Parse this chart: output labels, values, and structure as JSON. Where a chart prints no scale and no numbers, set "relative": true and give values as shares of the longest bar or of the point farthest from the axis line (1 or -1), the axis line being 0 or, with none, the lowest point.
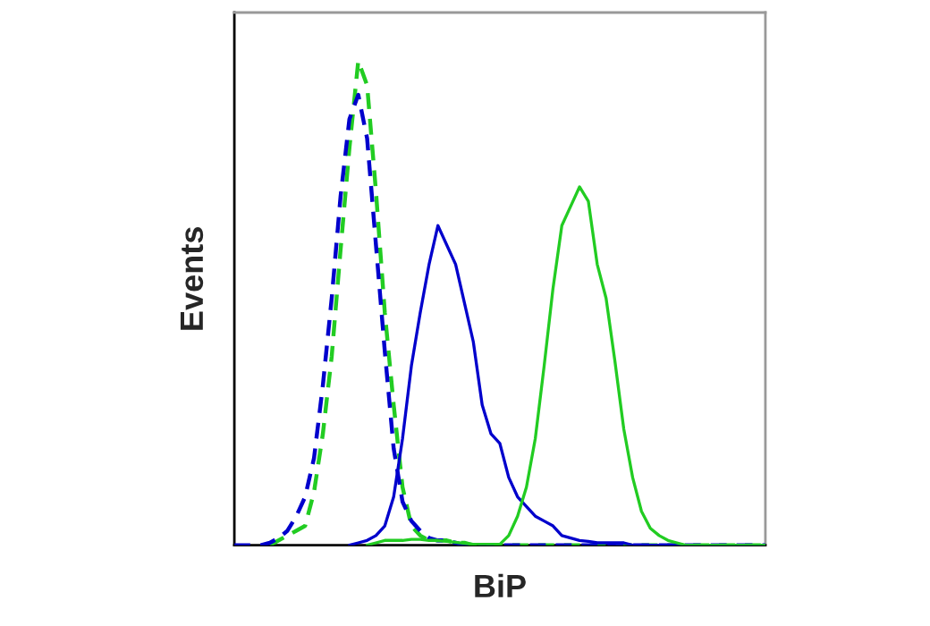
{
  "chart_data": {
    "type": "line",
    "relative": true,
    "xlabel": "BiP",
    "ylabel": "Events",
    "grid": false,
    "categories": [
      null,
      null,
      null,
      null,
      null,
      null,
      null,
      null,
      null,
      null,
      null,
      null,
      null,
      null,
      null,
      null,
      null,
      null,
      null,
      null,
      null,
      null,
      null,
      null,
      null,
      null,
      null,
      null,
      null,
      null,
      null,
      null,
      null,
      null,
      null,
      null,
      null,
      null,
      null,
      null,
      null,
      null,
      null,
      null,
      null,
      null,
      null,
      null,
      null,
      null,
      null,
      null,
      null,
      null,
      null,
      null,
      null,
      null,
      null,
      null,
      null
    ],
    "series": [
      {
        "color": "#22cc22",
        "line_style": "dashed",
        "values": [
          null,
          null,
          null,
          null,
          0,
          0.01,
          0.02,
          0.03,
          0.04,
          0.11,
          0.23,
          0.39,
          0.61,
          0.82,
          1.0,
          0.95,
          0.73,
          0.48,
          0.29,
          0.12,
          0.04,
          0.02,
          0.01,
          0.01,
          0.01,
          0.005,
          0.005,
          0,
          0,
          0,
          0,
          0,
          0,
          0,
          0,
          0,
          0,
          0,
          0,
          0,
          0,
          0,
          0,
          0,
          0,
          0,
          0,
          0,
          0,
          0,
          0,
          0,
          0,
          0,
          0,
          0,
          0,
          0,
          0,
          0,
          0
        ]
      },
      {
        "color": "#0000cc",
        "line_style": "dashed",
        "values": [
          0,
          0,
          0,
          0,
          0.005,
          0.015,
          0.03,
          0.06,
          0.1,
          0.18,
          0.33,
          0.51,
          0.72,
          0.88,
          0.93,
          0.84,
          0.62,
          0.4,
          0.2,
          0.09,
          0.05,
          0.03,
          0.015,
          0.01,
          0.01,
          0.005,
          0,
          0,
          0,
          0,
          0,
          0,
          0,
          0,
          0,
          0,
          0,
          0,
          0,
          0,
          0,
          0,
          0,
          0,
          0,
          0,
          0,
          0,
          0,
          0,
          0,
          0,
          0,
          0,
          0,
          0,
          0,
          0,
          0,
          0,
          0
        ]
      },
      {
        "color": "#0000cc",
        "line_style": "solid",
        "values": [
          null,
          null,
          null,
          null,
          null,
          null,
          null,
          null,
          null,
          null,
          null,
          null,
          null,
          0,
          0.005,
          0.01,
          0.02,
          0.04,
          0.1,
          0.22,
          0.37,
          0.48,
          0.58,
          0.66,
          0.62,
          0.58,
          0.5,
          0.42,
          0.29,
          0.23,
          0.21,
          0.14,
          0.1,
          0.08,
          0.06,
          0.05,
          0.04,
          0.02,
          0.015,
          0.01,
          0.008,
          0.005,
          0.005,
          0.005,
          0.005,
          0,
          0,
          0,
          0,
          0,
          0,
          0,
          0,
          0,
          0,
          0,
          0,
          0,
          0,
          0,
          0
        ]
      },
      {
        "color": "#22cc22",
        "line_style": "solid",
        "values": [
          null,
          null,
          null,
          null,
          null,
          null,
          null,
          null,
          null,
          null,
          null,
          null,
          null,
          null,
          null,
          0,
          0.005,
          0.01,
          0.01,
          0.01,
          0.012,
          0.012,
          0.01,
          0.01,
          0.008,
          0.006,
          0.004,
          0.002,
          0.002,
          0.002,
          0.002,
          0.02,
          0.06,
          0.12,
          0.22,
          0.37,
          0.53,
          0.66,
          0.7,
          0.74,
          0.71,
          0.58,
          0.51,
          0.38,
          0.24,
          0.14,
          0.07,
          0.035,
          0.02,
          0.01,
          0.005,
          0,
          0,
          0,
          0,
          0,
          0,
          0,
          0,
          0,
          0
        ]
      }
    ]
  }
}
